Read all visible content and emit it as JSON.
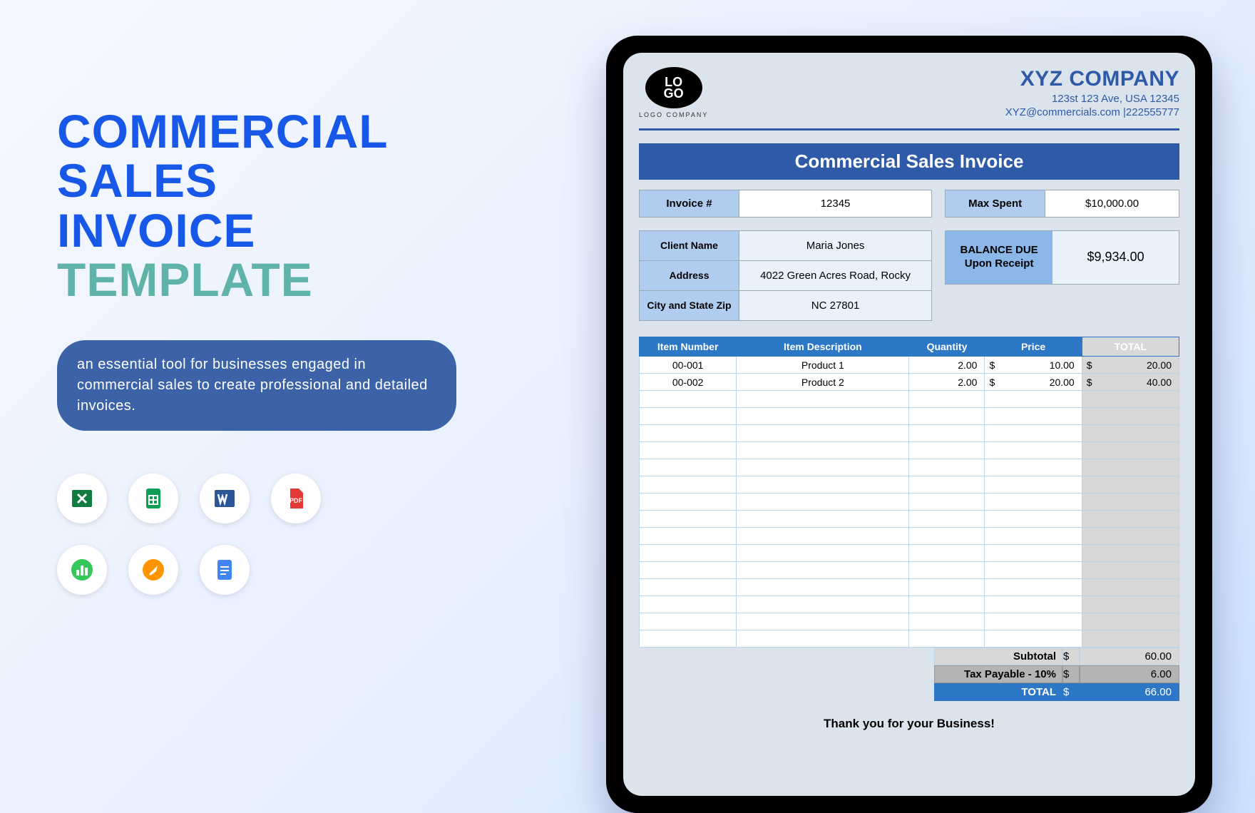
{
  "title": {
    "l1": "COMMERCIAL",
    "l2": "SALES",
    "l3": "INVOICE",
    "l4": "TEMPLATE"
  },
  "blurb": "an essential tool for businesses engaged in commercial sales to create professional and detailed invoices.",
  "apps": [
    "excel",
    "gsheets",
    "word",
    "pdf",
    "numbers",
    "pages",
    "gdocs"
  ],
  "logo": {
    "line1": "LO",
    "line2": "GO",
    "sub": "LOGO COMPANY"
  },
  "company": {
    "name": "XYZ COMPANY",
    "addr": "123st 123 Ave, USA 12345",
    "contact": "XYZ@commercials.com |222555777"
  },
  "banner": "Commercial Sales Invoice",
  "invoice": {
    "label": "Invoice #",
    "value": "12345"
  },
  "maxspent": {
    "label": "Max Spent",
    "value": "$10,000.00"
  },
  "client": {
    "name_label": "Client Name",
    "name": "Maria Jones",
    "addr_label": "Address",
    "addr": "4022 Green Acres Road, Rocky",
    "city_label": "City and State Zip",
    "city": "NC 27801"
  },
  "balance": {
    "label1": "BALANCE DUE",
    "label2": "Upon Receipt",
    "value": "$9,934.00"
  },
  "columns": [
    "Item Number",
    "Item Description",
    "Quantity",
    "Price",
    "TOTAL"
  ],
  "rows": [
    {
      "num": "00-001",
      "desc": "Product 1",
      "qty": "2.00",
      "price": "10.00",
      "total": "20.00"
    },
    {
      "num": "00-002",
      "desc": "Product 2",
      "qty": "2.00",
      "price": "20.00",
      "total": "40.00"
    }
  ],
  "empty_rows": 15,
  "totals": {
    "subtotal_label": "Subtotal",
    "subtotal": "60.00",
    "tax_label": "Tax Payable - 10%",
    "tax": "6.00",
    "grand_label": "TOTAL",
    "grand": "66.00",
    "currency": "$"
  },
  "thanks": "Thank you for your Business!"
}
